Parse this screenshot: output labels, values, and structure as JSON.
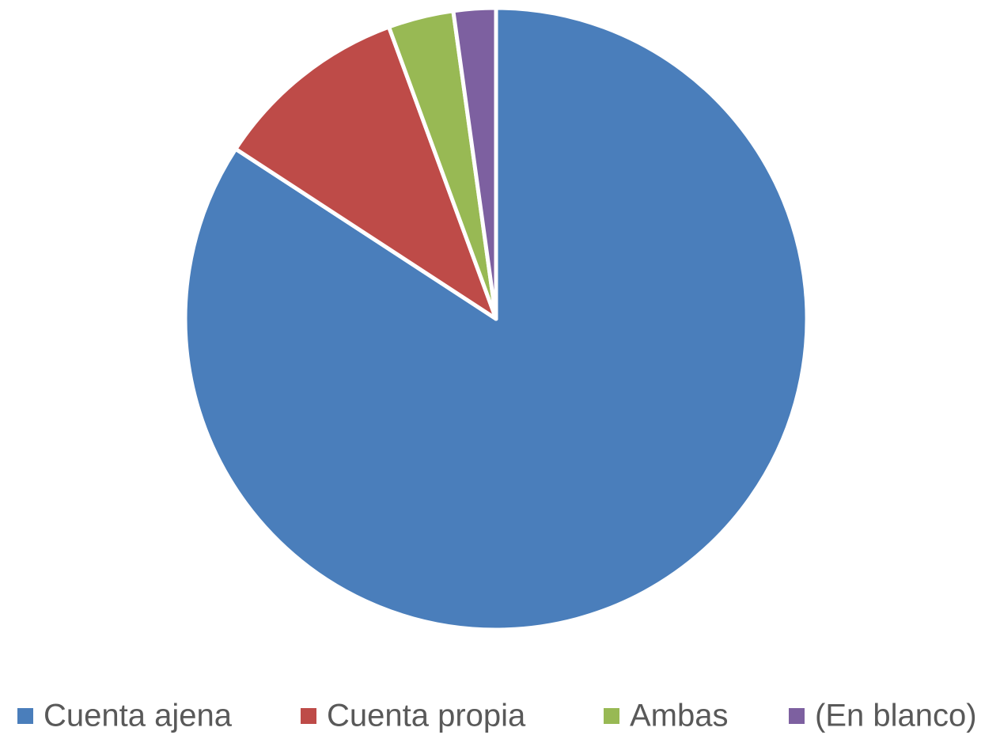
{
  "chart_data": {
    "type": "pie",
    "categories": [
      "Cuenta ajena",
      "Cuenta propia",
      "Ambas",
      "(En blanco)"
    ],
    "values": [
      84.2,
      10.2,
      3.4,
      2.2
    ],
    "colors": [
      "#4a7ebb",
      "#be4b48",
      "#98b954",
      "#7d60a0"
    ],
    "legend": "bottom"
  }
}
